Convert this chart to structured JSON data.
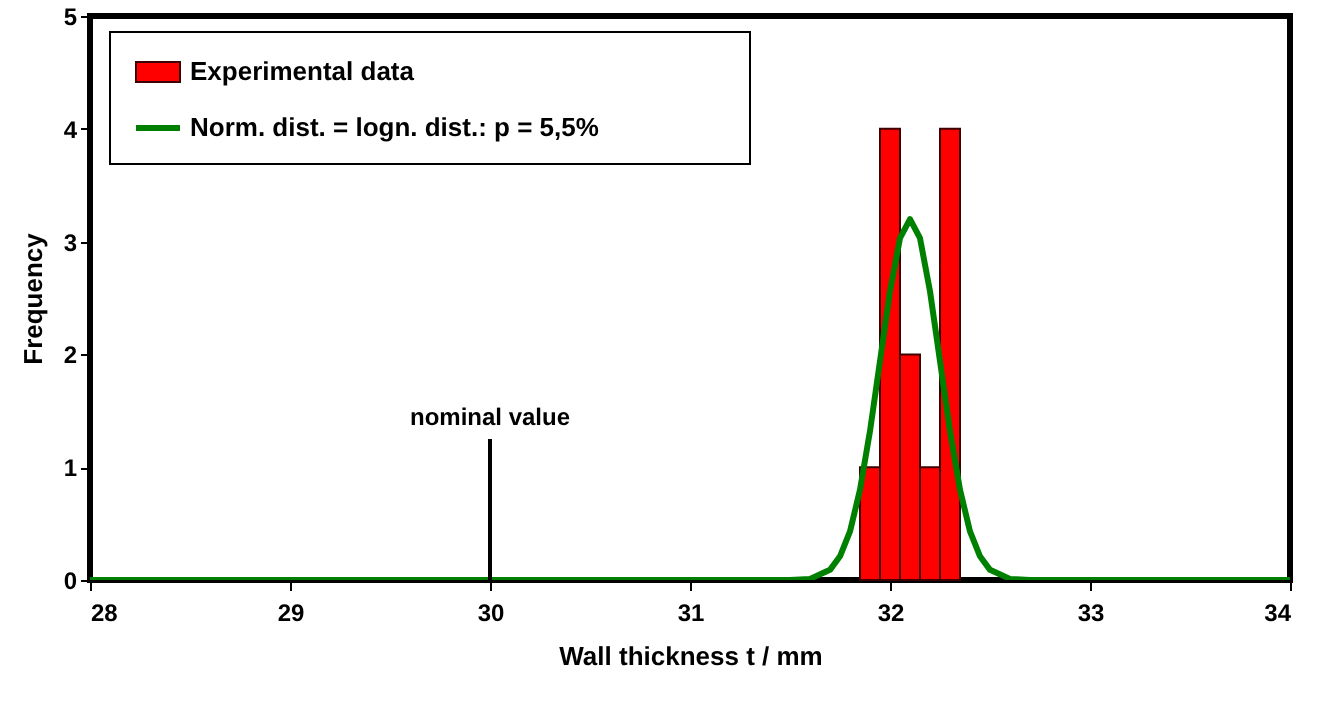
{
  "chart_data": {
    "type": "histogram",
    "xlabel": "Wall thickness t / mm",
    "ylabel": "Frequency",
    "bins": [
      31.85,
      31.95,
      32.05,
      32.15,
      32.25,
      32.35
    ],
    "series": [
      {
        "name": "Experimental data",
        "color": "#ff0000",
        "values": [
          1,
          4,
          2,
          1,
          4
        ]
      },
      {
        "type": "line",
        "name": "Norm. dist. = logn. dist.: p = 5,5%",
        "color": "#008000",
        "x": [
          28,
          31.5,
          31.6,
          31.7,
          31.75,
          31.8,
          31.85,
          31.9,
          31.95,
          32.0,
          32.05,
          32.1,
          32.15,
          32.2,
          32.25,
          32.3,
          32.35,
          32.4,
          32.45,
          32.5,
          32.6,
          32.7,
          34
        ],
        "values": [
          0,
          0,
          0.01,
          0.09,
          0.21,
          0.43,
          0.8,
          1.32,
          1.94,
          2.56,
          3.03,
          3.2,
          3.03,
          2.56,
          1.94,
          1.32,
          0.8,
          0.43,
          0.21,
          0.09,
          0.01,
          0,
          0
        ]
      }
    ],
    "ref_lines": [
      {
        "axis": "x",
        "value": 30,
        "label": "nominal value"
      }
    ],
    "xlim": [
      28,
      34
    ],
    "xticks": [
      28,
      29,
      30,
      31,
      32,
      33,
      34
    ],
    "ylim": [
      0,
      5
    ],
    "yticks": [
      0,
      1,
      2,
      3,
      4,
      5
    ],
    "grid": false,
    "legend": "top left"
  }
}
